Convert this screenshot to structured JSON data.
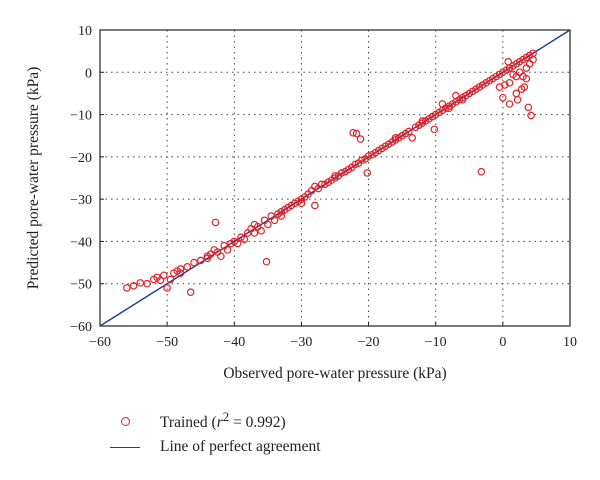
{
  "chart_data": {
    "type": "scatter",
    "xlabel": "Observed pore-water pressure (kPa)",
    "ylabel": "Predicted pore-water pressure (kPa)",
    "xlim": [
      -60,
      10
    ],
    "ylim": [
      -60,
      10
    ],
    "xticks": [
      -60,
      -50,
      -40,
      -30,
      -20,
      -10,
      0,
      10
    ],
    "yticks": [
      -60,
      -50,
      -40,
      -30,
      -20,
      -10,
      0,
      10
    ],
    "grid": true,
    "legend_position": "below",
    "series": [
      {
        "name": "Trained",
        "legend_prefix": "Trained (",
        "legend_stat": "r",
        "legend_stat_exp": "2",
        "legend_stat_value": " = 0.992)",
        "marker": "open-circle",
        "color": "#e0242a",
        "points": [
          [
            -56,
            -51
          ],
          [
            -55,
            -50.5
          ],
          [
            -54,
            -49.8
          ],
          [
            -53,
            -50
          ],
          [
            -52,
            -49
          ],
          [
            -51.5,
            -48.5
          ],
          [
            -51,
            -49.2
          ],
          [
            -50.5,
            -48
          ],
          [
            -50,
            -51
          ],
          [
            -49.5,
            -49
          ],
          [
            -49,
            -47.5
          ],
          [
            -48.5,
            -47
          ],
          [
            -48,
            -46.5
          ],
          [
            -47,
            -46
          ],
          [
            -46.5,
            -52
          ],
          [
            -46,
            -45
          ],
          [
            -45,
            -44.5
          ],
          [
            -44,
            -44
          ],
          [
            -43.5,
            -43
          ],
          [
            -43,
            -42
          ],
          [
            -42.8,
            -35.5
          ],
          [
            -42.5,
            -42.5
          ],
          [
            -42,
            -43.5
          ],
          [
            -41.5,
            -41
          ],
          [
            -41,
            -42
          ],
          [
            -40.5,
            -40.5
          ],
          [
            -40,
            -40
          ],
          [
            -39.5,
            -40.5
          ],
          [
            -39,
            -39
          ],
          [
            -38.5,
            -39.5
          ],
          [
            -38,
            -38
          ],
          [
            -37.5,
            -37
          ],
          [
            -37,
            -38
          ],
          [
            -36.5,
            -36.5
          ],
          [
            -36,
            -37.5
          ],
          [
            -35.5,
            -35
          ],
          [
            -35.2,
            -44.8
          ],
          [
            -35,
            -36
          ],
          [
            -34.5,
            -34
          ],
          [
            -34,
            -35
          ],
          [
            -33.5,
            -33.5
          ],
          [
            -33,
            -34
          ],
          [
            -32.5,
            -32.5
          ],
          [
            -32,
            -32
          ],
          [
            -31.5,
            -31.5
          ],
          [
            -31,
            -31
          ],
          [
            -30.5,
            -30.5
          ],
          [
            -30,
            -30
          ],
          [
            -29.5,
            -29.5
          ],
          [
            -29,
            -28.8
          ],
          [
            -28.5,
            -28
          ],
          [
            -28,
            -31.5
          ],
          [
            -27.5,
            -27.5
          ],
          [
            -27,
            -26.5
          ],
          [
            -26.5,
            -26.5
          ],
          [
            -26,
            -26
          ],
          [
            -25.5,
            -25.5
          ],
          [
            -25,
            -25
          ],
          [
            -24.5,
            -24.5
          ],
          [
            -24,
            -23.8
          ],
          [
            -23.5,
            -23.5
          ],
          [
            -23,
            -23
          ],
          [
            -22.5,
            -22.5
          ],
          [
            -22.3,
            -14.3
          ],
          [
            -22,
            -21.8
          ],
          [
            -21.8,
            -14.5
          ],
          [
            -21.5,
            -21.5
          ],
          [
            -21.2,
            -15.8
          ],
          [
            -21,
            -20.8
          ],
          [
            -20.5,
            -20.5
          ],
          [
            -20.2,
            -23.8
          ],
          [
            -20,
            -19.8
          ],
          [
            -19.5,
            -19.5
          ],
          [
            -19,
            -19
          ],
          [
            -18.5,
            -18.5
          ],
          [
            -18,
            -18
          ],
          [
            -17.5,
            -17.5
          ],
          [
            -17,
            -17
          ],
          [
            -16.5,
            -16.5
          ],
          [
            -16,
            -16
          ],
          [
            -15.5,
            -15.5
          ],
          [
            -15,
            -15
          ],
          [
            -14.5,
            -14.5
          ],
          [
            -14,
            -14
          ],
          [
            -13.5,
            -15.5
          ],
          [
            -13,
            -13
          ],
          [
            -12.5,
            -12.5
          ],
          [
            -12,
            -12
          ],
          [
            -11.5,
            -11.5
          ],
          [
            -11,
            -11
          ],
          [
            -10.5,
            -10.5
          ],
          [
            -10.2,
            -13.5
          ],
          [
            -10,
            -10
          ],
          [
            -9.5,
            -9.5
          ],
          [
            -9,
            -9
          ],
          [
            -8.5,
            -8.5
          ],
          [
            -8,
            -8
          ],
          [
            -7.5,
            -7.5
          ],
          [
            -7,
            -7
          ],
          [
            -6.5,
            -6.5
          ],
          [
            -6,
            -6
          ],
          [
            -5.5,
            -5.5
          ],
          [
            -5,
            -5
          ],
          [
            -4.5,
            -4.5
          ],
          [
            -4,
            -4
          ],
          [
            -3.5,
            -3.5
          ],
          [
            -3.2,
            -23.5
          ],
          [
            -3,
            -3
          ],
          [
            -2.5,
            -2.5
          ],
          [
            -2,
            -2
          ],
          [
            -1.5,
            -1.5
          ],
          [
            -1,
            -1
          ],
          [
            -0.5,
            -0.5
          ],
          [
            0,
            0
          ],
          [
            0.3,
            -3
          ],
          [
            0.5,
            0.5
          ],
          [
            1,
            1
          ],
          [
            1,
            -2.5
          ],
          [
            1.5,
            1.5
          ],
          [
            1.5,
            -0.5
          ],
          [
            2,
            2
          ],
          [
            2,
            -1
          ],
          [
            2.2,
            -6.5
          ],
          [
            2.5,
            2.5
          ],
          [
            2.5,
            0
          ],
          [
            2.8,
            -4
          ],
          [
            3,
            3
          ],
          [
            3,
            -1
          ],
          [
            3.2,
            -3.5
          ],
          [
            3.5,
            3.5
          ],
          [
            3.5,
            1
          ],
          [
            3.8,
            -8.3
          ],
          [
            4,
            4
          ],
          [
            4,
            2
          ],
          [
            4.2,
            -10.2
          ],
          [
            4.5,
            4.5
          ],
          [
            4.5,
            3
          ],
          [
            0,
            -6
          ],
          [
            1,
            -7.5
          ],
          [
            2,
            -5
          ],
          [
            -0.5,
            -3.5
          ],
          [
            0.8,
            2.5
          ],
          [
            3.5,
            -1.5
          ],
          [
            -9,
            -7.5
          ],
          [
            -8,
            -8.5
          ],
          [
            -6,
            -6.5
          ],
          [
            -7,
            -5.5
          ],
          [
            -16,
            -15.5
          ],
          [
            -12,
            -11.5
          ],
          [
            -25,
            -24.5
          ],
          [
            -28,
            -27
          ],
          [
            -30,
            -31
          ],
          [
            -33,
            -33
          ],
          [
            -37,
            -36
          ],
          [
            -44,
            -43.5
          ],
          [
            -48,
            -47.5
          ]
        ]
      },
      {
        "name": "Line of perfect agreement",
        "type": "line",
        "color": "#1f3f8f",
        "x": [
          -60,
          10
        ],
        "y": [
          -60,
          10
        ]
      }
    ]
  }
}
